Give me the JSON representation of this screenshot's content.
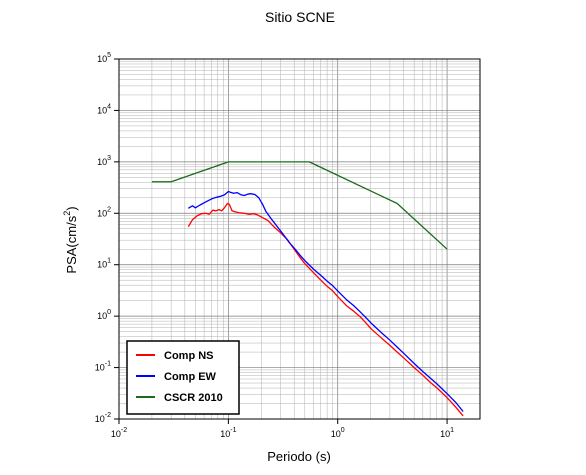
{
  "chart_data": {
    "type": "line",
    "title": "Sitio SCNE",
    "xlabel": "Periodo (s)",
    "ylabel": "PSA(cm/s",
    "ylabel_sup": "2",
    "ylabel_close": ")",
    "xscale": "log",
    "yscale": "log",
    "xlim": [
      0.01,
      20
    ],
    "ylim": [
      0.01,
      100000
    ],
    "x_ticks": [
      {
        "base": "10",
        "exp": "-2",
        "value": 0.01
      },
      {
        "base": "10",
        "exp": "-1",
        "value": 0.1
      },
      {
        "base": "10",
        "exp": "0",
        "value": 1
      },
      {
        "base": "10",
        "exp": "1",
        "value": 10
      }
    ],
    "y_ticks": [
      {
        "base": "10",
        "exp": "-2",
        "value": 0.01
      },
      {
        "base": "10",
        "exp": "-1",
        "value": 0.1
      },
      {
        "base": "10",
        "exp": "0",
        "value": 1
      },
      {
        "base": "10",
        "exp": "1",
        "value": 10
      },
      {
        "base": "10",
        "exp": "2",
        "value": 100
      },
      {
        "base": "10",
        "exp": "3",
        "value": 1000
      },
      {
        "base": "10",
        "exp": "4",
        "value": 10000
      },
      {
        "base": "10",
        "exp": "5",
        "value": 100000
      }
    ],
    "grid": true,
    "legend_position": "bottom-left",
    "series": [
      {
        "name": "Comp NS",
        "color": "#ff0000",
        "points": [
          [
            0.043,
            55
          ],
          [
            0.047,
            75
          ],
          [
            0.052,
            90
          ],
          [
            0.057,
            98
          ],
          [
            0.062,
            100
          ],
          [
            0.067,
            96
          ],
          [
            0.072,
            115
          ],
          [
            0.077,
            112
          ],
          [
            0.082,
            118
          ],
          [
            0.087,
            112
          ],
          [
            0.092,
            128
          ],
          [
            0.098,
            155
          ],
          [
            0.102,
            150
          ],
          [
            0.108,
            112
          ],
          [
            0.115,
            107
          ],
          [
            0.125,
            102
          ],
          [
            0.14,
            100
          ],
          [
            0.155,
            95
          ],
          [
            0.17,
            98
          ],
          [
            0.185,
            93
          ],
          [
            0.2,
            85
          ],
          [
            0.23,
            72
          ],
          [
            0.26,
            55
          ],
          [
            0.3,
            42
          ],
          [
            0.35,
            30
          ],
          [
            0.4,
            20
          ],
          [
            0.45,
            14
          ],
          [
            0.5,
            10.5
          ],
          [
            0.6,
            7
          ],
          [
            0.7,
            5
          ],
          [
            0.8,
            3.8
          ],
          [
            0.9,
            3.1
          ],
          [
            1.0,
            2.4
          ],
          [
            1.2,
            1.6
          ],
          [
            1.4,
            1.25
          ],
          [
            1.6,
            0.98
          ],
          [
            1.8,
            0.75
          ],
          [
            2.0,
            0.58
          ],
          [
            2.5,
            0.38
          ],
          [
            3.0,
            0.27
          ],
          [
            3.5,
            0.2
          ],
          [
            4.0,
            0.155
          ],
          [
            5.0,
            0.1
          ],
          [
            6.0,
            0.071
          ],
          [
            7.0,
            0.052
          ],
          [
            8.0,
            0.041
          ],
          [
            10.0,
            0.026
          ],
          [
            12.0,
            0.017
          ],
          [
            14.0,
            0.0115
          ]
        ]
      },
      {
        "name": "Comp EW",
        "color": "#0000ff",
        "points": [
          [
            0.043,
            125
          ],
          [
            0.047,
            140
          ],
          [
            0.05,
            128
          ],
          [
            0.055,
            145
          ],
          [
            0.06,
            160
          ],
          [
            0.066,
            178
          ],
          [
            0.072,
            195
          ],
          [
            0.078,
            205
          ],
          [
            0.085,
            215
          ],
          [
            0.092,
            228
          ],
          [
            0.1,
            265
          ],
          [
            0.105,
            255
          ],
          [
            0.112,
            245
          ],
          [
            0.12,
            252
          ],
          [
            0.13,
            230
          ],
          [
            0.14,
            222
          ],
          [
            0.15,
            235
          ],
          [
            0.16,
            240
          ],
          [
            0.175,
            232
          ],
          [
            0.19,
            200
          ],
          [
            0.205,
            150
          ],
          [
            0.22,
            110
          ],
          [
            0.25,
            75
          ],
          [
            0.28,
            55
          ],
          [
            0.32,
            38
          ],
          [
            0.36,
            27
          ],
          [
            0.4,
            21
          ],
          [
            0.45,
            15.5
          ],
          [
            0.5,
            12
          ],
          [
            0.6,
            8.2
          ],
          [
            0.7,
            6.2
          ],
          [
            0.8,
            4.8
          ],
          [
            0.9,
            3.9
          ],
          [
            1.0,
            3.1
          ],
          [
            1.2,
            2.1
          ],
          [
            1.4,
            1.6
          ],
          [
            1.6,
            1.22
          ],
          [
            1.8,
            0.95
          ],
          [
            2.0,
            0.75
          ],
          [
            2.5,
            0.48
          ],
          [
            3.0,
            0.34
          ],
          [
            3.5,
            0.25
          ],
          [
            4.0,
            0.19
          ],
          [
            5.0,
            0.12
          ],
          [
            6.0,
            0.084
          ],
          [
            7.0,
            0.063
          ],
          [
            8.0,
            0.049
          ],
          [
            10.0,
            0.031
          ],
          [
            12.0,
            0.021
          ],
          [
            14.0,
            0.014
          ]
        ]
      },
      {
        "name": "CSCR 2010",
        "color": "#1a6b1a",
        "points": [
          [
            0.02,
            410
          ],
          [
            0.03,
            410
          ],
          [
            0.1,
            1000
          ],
          [
            0.55,
            1000
          ],
          [
            3.5,
            155
          ],
          [
            10.0,
            20
          ]
        ]
      }
    ]
  }
}
